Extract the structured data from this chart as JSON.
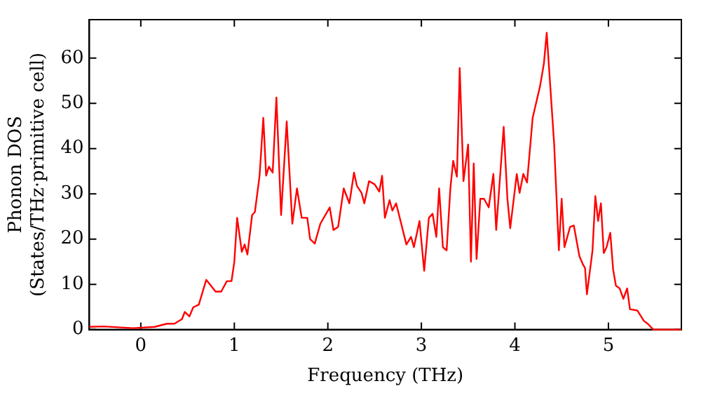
{
  "chart_data": {
    "type": "line",
    "xlabel": "Frequency (THz)",
    "ylabel": "Phonon DOS\n(States/THz·primitive cell)",
    "xlim": [
      -0.55,
      5.78
    ],
    "ylim": [
      0,
      68.5
    ],
    "xticks": [
      0,
      1,
      2,
      3,
      4,
      5
    ],
    "yticks": [
      0,
      10,
      20,
      30,
      40,
      50,
      60
    ],
    "grid": false,
    "legend": false,
    "marker": "none",
    "line_style": "solid",
    "series": [
      {
        "color": "#ff0000",
        "x": [
          -0.55,
          -0.4,
          -0.08,
          0.15,
          0.28,
          0.36,
          0.44,
          0.47,
          0.52,
          0.56,
          0.62,
          0.7,
          0.8,
          0.86,
          0.92,
          0.97,
          1.0,
          1.03,
          1.08,
          1.11,
          1.14,
          1.19,
          1.22,
          1.27,
          1.31,
          1.34,
          1.37,
          1.41,
          1.45,
          1.5,
          1.56,
          1.62,
          1.67,
          1.72,
          1.78,
          1.81,
          1.86,
          1.92,
          2.02,
          2.06,
          2.11,
          2.17,
          2.23,
          2.28,
          2.31,
          2.36,
          2.39,
          2.44,
          2.5,
          2.55,
          2.58,
          2.61,
          2.66,
          2.69,
          2.73,
          2.84,
          2.89,
          2.92,
          2.98,
          3.03,
          3.08,
          3.12,
          3.16,
          3.19,
          3.23,
          3.27,
          3.31,
          3.34,
          3.38,
          3.41,
          3.45,
          3.5,
          3.53,
          3.56,
          3.59,
          3.63,
          3.67,
          3.72,
          3.77,
          3.8,
          3.88,
          3.92,
          3.95,
          4.02,
          4.05,
          4.09,
          4.13,
          4.19,
          4.27,
          4.31,
          4.34,
          4.42,
          4.47,
          4.5,
          4.53,
          4.59,
          4.63,
          4.69,
          4.73,
          4.75,
          4.77,
          4.83,
          4.86,
          4.89,
          4.92,
          4.95,
          4.98,
          5.02,
          5.05,
          5.08,
          5.12,
          5.16,
          5.2,
          5.23,
          5.31,
          5.38,
          5.42,
          5.48,
          5.78
        ],
        "values": [
          0.6,
          0.7,
          0.3,
          0.6,
          1.3,
          1.3,
          2.3,
          3.9,
          2.9,
          4.9,
          5.5,
          11,
          8.4,
          8.4,
          10.7,
          10.7,
          15,
          24.7,
          17.2,
          18.8,
          16.6,
          25.3,
          26,
          34,
          46.8,
          34,
          36,
          34.7,
          51.3,
          25.3,
          46,
          23.4,
          31.2,
          24.7,
          24.7,
          20,
          19,
          23.4,
          27,
          22,
          22.7,
          31.2,
          27.9,
          34.7,
          31.8,
          30.2,
          27.9,
          32.8,
          32.1,
          30.5,
          34,
          24.7,
          28.6,
          26.3,
          27.9,
          18.8,
          20.5,
          18.2,
          24,
          13,
          24.7,
          25.6,
          20.5,
          31.2,
          18.2,
          17.5,
          31.2,
          37.3,
          33.8,
          57.8,
          32.8,
          40.9,
          15,
          36.7,
          15.6,
          28.9,
          28.9,
          27,
          34.4,
          22,
          44.8,
          28.9,
          22.4,
          34.4,
          30.2,
          34.4,
          32.5,
          46.8,
          53.9,
          58.8,
          65.6,
          40.9,
          17.5,
          28.9,
          18.2,
          22.7,
          23,
          16.2,
          14.3,
          13.6,
          7.8,
          17.5,
          29.5,
          24,
          27.9,
          16.9,
          18.2,
          21.4,
          13.3,
          9.7,
          9.1,
          6.8,
          9.1,
          4.5,
          4.2,
          1.9,
          1.3,
          0,
          0
        ]
      }
    ]
  }
}
